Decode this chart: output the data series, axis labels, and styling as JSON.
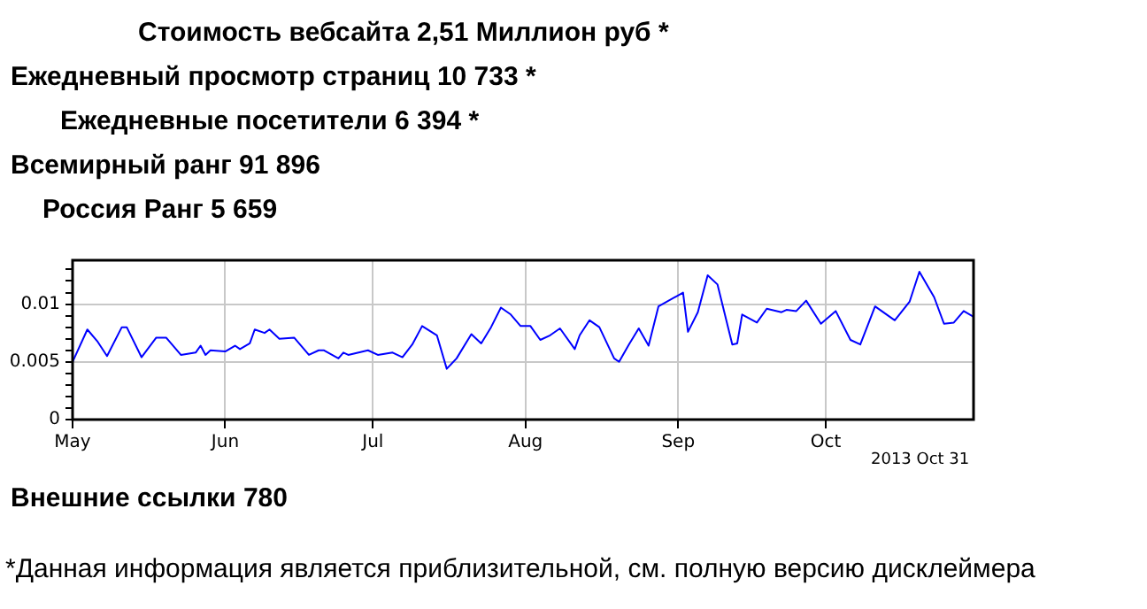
{
  "chart_data": {
    "type": "line",
    "x": [
      "2013-05-01",
      "2013-05-04",
      "2013-05-06",
      "2013-05-08",
      "2013-05-11",
      "2013-05-12",
      "2013-05-15",
      "2013-05-18",
      "2013-05-20",
      "2013-05-23",
      "2013-05-26",
      "2013-05-27",
      "2013-05-28",
      "2013-05-29",
      "2013-06-01",
      "2013-06-03",
      "2013-06-04",
      "2013-06-06",
      "2013-06-07",
      "2013-06-09",
      "2013-06-10",
      "2013-06-12",
      "2013-06-15",
      "2013-06-18",
      "2013-06-20",
      "2013-06-21",
      "2013-06-24",
      "2013-06-25",
      "2013-06-26",
      "2013-06-30",
      "2013-07-02",
      "2013-07-05",
      "2013-07-07",
      "2013-07-09",
      "2013-07-11",
      "2013-07-14",
      "2013-07-16",
      "2013-07-18",
      "2013-07-21",
      "2013-07-23",
      "2013-07-25",
      "2013-07-27",
      "2013-07-29",
      "2013-07-31",
      "2013-08-02",
      "2013-08-04",
      "2013-08-06",
      "2013-08-08",
      "2013-08-11",
      "2013-08-12",
      "2013-08-14",
      "2013-08-16",
      "2013-08-19",
      "2013-08-20",
      "2013-08-22",
      "2013-08-24",
      "2013-08-26",
      "2013-08-28",
      "2013-09-02",
      "2013-09-03",
      "2013-09-05",
      "2013-09-07",
      "2013-09-09",
      "2013-09-12",
      "2013-09-13",
      "2013-09-14",
      "2013-09-17",
      "2013-09-19",
      "2013-09-22",
      "2013-09-23",
      "2013-09-25",
      "2013-09-27",
      "2013-09-30",
      "2013-10-03",
      "2013-10-06",
      "2013-10-08",
      "2013-10-11",
      "2013-10-15",
      "2013-10-18",
      "2013-10-20",
      "2013-10-23",
      "2013-10-25",
      "2013-10-27",
      "2013-10-29",
      "2013-10-31"
    ],
    "series": [
      {
        "color": "#0000ff",
        "values": [
          0.005,
          0.0078,
          0.0068,
          0.0055,
          0.008,
          0.008,
          0.0054,
          0.0071,
          0.0071,
          0.0056,
          0.0058,
          0.0064,
          0.0056,
          0.006,
          0.0059,
          0.0064,
          0.0061,
          0.0066,
          0.0078,
          0.0075,
          0.0078,
          0.007,
          0.0071,
          0.0056,
          0.006,
          0.006,
          0.0053,
          0.0058,
          0.0056,
          0.006,
          0.0056,
          0.0058,
          0.0054,
          0.0065,
          0.0081,
          0.0073,
          0.0044,
          0.0053,
          0.0074,
          0.0066,
          0.008,
          0.0097,
          0.0091,
          0.0081,
          0.0081,
          0.0069,
          0.0073,
          0.0079,
          0.0061,
          0.0073,
          0.0086,
          0.008,
          0.0053,
          0.005,
          0.0065,
          0.0079,
          0.0064,
          0.0098,
          0.011,
          0.0076,
          0.0093,
          0.0125,
          0.0117,
          0.0065,
          0.0066,
          0.0091,
          0.0084,
          0.0096,
          0.0093,
          0.0095,
          0.0094,
          0.0103,
          0.0083,
          0.0094,
          0.0069,
          0.0065,
          0.0098,
          0.0086,
          0.0102,
          0.0128,
          0.0106,
          0.0083,
          0.0084,
          0.0094,
          0.0089
        ]
      }
    ],
    "xlim": [
      "2013-05-01",
      "2013-10-31"
    ],
    "xticks": [
      {
        "value": "2013-05-01",
        "label": "May"
      },
      {
        "value": "2013-06-01",
        "label": "Jun"
      },
      {
        "value": "2013-07-01",
        "label": "Jul"
      },
      {
        "value": "2013-08-01",
        "label": "Aug"
      },
      {
        "value": "2013-09-01",
        "label": "Sep"
      },
      {
        "value": "2013-10-01",
        "label": "Oct"
      }
    ],
    "ylim": [
      0,
      0.0138
    ],
    "yticks": [
      0,
      {
        "value": 0.001,
        "label": null
      },
      {
        "value": 0.002,
        "label": null
      },
      {
        "value": 0.003,
        "label": null
      },
      {
        "value": 0.004,
        "label": null
      },
      0.005,
      {
        "value": 0.006,
        "label": null
      },
      {
        "value": 0.007,
        "label": null
      },
      {
        "value": 0.008,
        "label": null
      },
      {
        "value": 0.009,
        "label": null
      },
      0.01,
      {
        "value": 0.011,
        "label": null
      },
      {
        "value": 0.012,
        "label": null
      },
      {
        "value": 0.013,
        "label": null
      }
    ],
    "grid": true,
    "marker": "none",
    "line_style": "solid",
    "annotations": [
      "Стоимость вебсайта 2,51 Миллион руб *",
      "Ежедневный просмотр страниц 10 733 *",
      "Ежедневные посетители 6 394 *",
      "Всемирный ранг 91 896",
      "Россия Ранг 5 659",
      "2013 Oct 31",
      "Внешние ссылки 780",
      "*Данная информация является приблизительной, см. полную версию дисклеймера"
    ]
  }
}
